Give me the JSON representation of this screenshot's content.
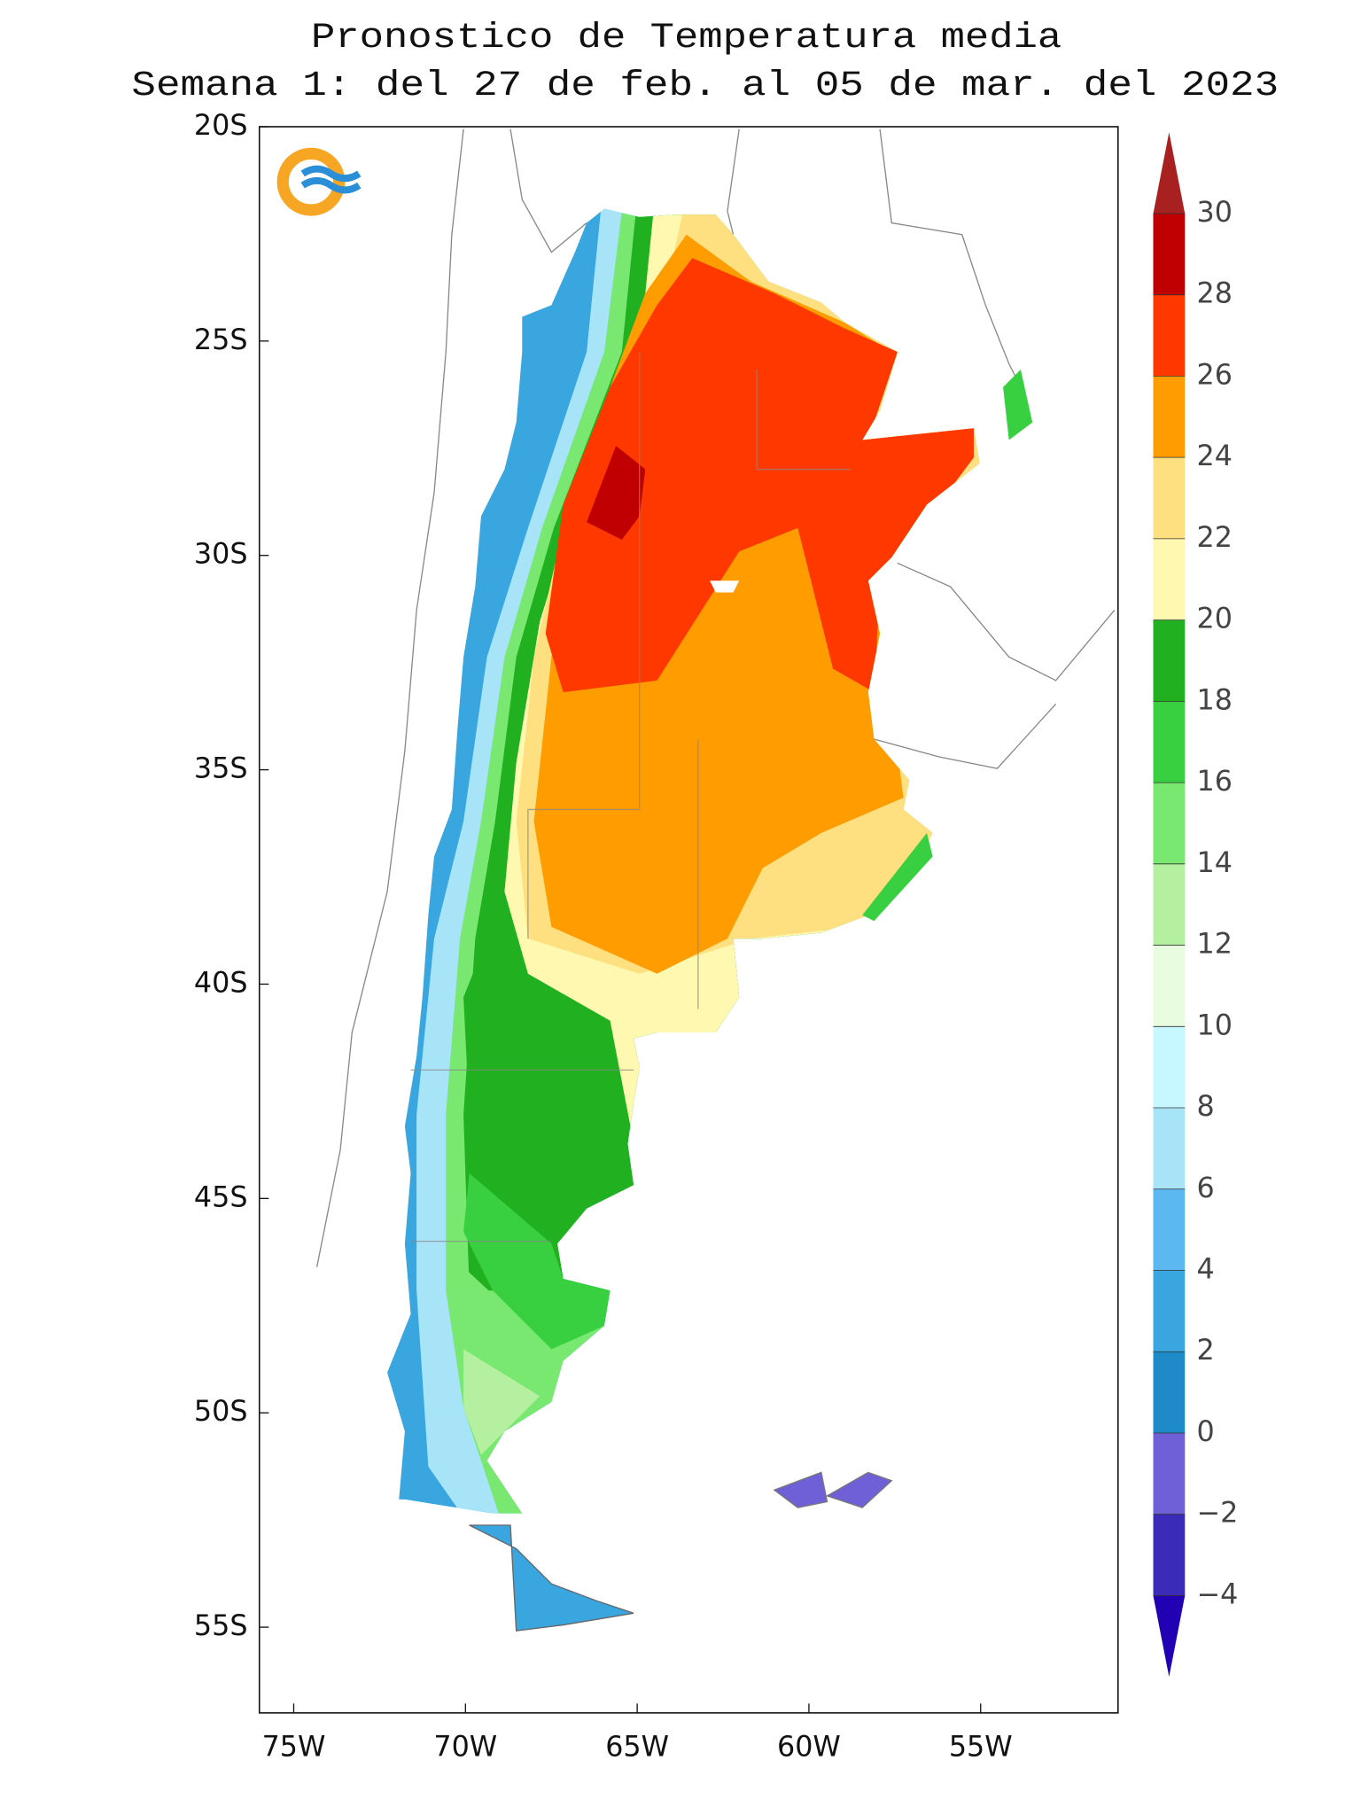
{
  "map": {
    "title": [
      "Pronostico de Temperatura media",
      "Semana 1: del 27 de feb. al 05 de mar. del 2023"
    ],
    "lat_range": [
      -20,
      -57
    ],
    "lon_range": [
      -76,
      -51
    ],
    "lat_ticks": [
      {
        "value": -20,
        "label": "20S"
      },
      {
        "value": -25,
        "label": "25S"
      },
      {
        "value": -30,
        "label": "30S"
      },
      {
        "value": -35,
        "label": "35S"
      },
      {
        "value": -40,
        "label": "40S"
      },
      {
        "value": -45,
        "label": "45S"
      },
      {
        "value": -50,
        "label": "50S"
      },
      {
        "value": -55,
        "label": "55S"
      }
    ],
    "lon_ticks": [
      {
        "value": -75,
        "label": "75W"
      },
      {
        "value": -70,
        "label": "70W"
      },
      {
        "value": -65,
        "label": "65W"
      },
      {
        "value": -60,
        "label": "60W"
      },
      {
        "value": -55,
        "label": "55W"
      }
    ]
  },
  "colorbar": {
    "levels": [
      {
        "value": -4,
        "label": "−4"
      },
      {
        "value": -2,
        "label": "−2"
      },
      0,
      2,
      4,
      6,
      8,
      10,
      12,
      14,
      16,
      18,
      20,
      22,
      24,
      26,
      28,
      30
    ],
    "colors": [
      "#2200b4",
      "#3a2bb8",
      "#7060d8",
      "#1e8ac8",
      "#3aa6e0",
      "#5cb8f0",
      "#a8e4f8",
      "#c8f8ff",
      "#e8fce0",
      "#b4f0a0",
      "#78e870",
      "#38d040",
      "#20b020",
      "#fff8b0",
      "#ffe080",
      "#ff9c00",
      "#ff3800",
      "#c00000",
      "#a82020"
    ]
  }
}
